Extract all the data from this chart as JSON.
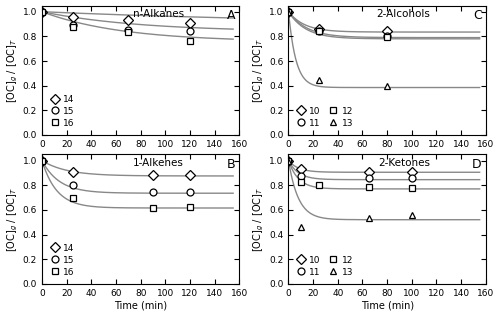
{
  "panel_A": {
    "title": "n-Alkanes",
    "label": "A",
    "series": [
      {
        "name": "14",
        "marker": "D",
        "data": [
          [
            0,
            1.0
          ],
          [
            25,
            0.96
          ],
          [
            70,
            0.935
          ],
          [
            120,
            0.905
          ]
        ],
        "A_inf": 0.89,
        "A0": 1.0,
        "tau": 250
      },
      {
        "name": "15",
        "marker": "o",
        "data": [
          [
            0,
            1.0
          ],
          [
            25,
            0.89
          ],
          [
            70,
            0.855
          ],
          [
            120,
            0.845
          ]
        ],
        "A_inf": 0.835,
        "A0": 1.0,
        "tau": 80
      },
      {
        "name": "16",
        "marker": "s",
        "data": [
          [
            0,
            1.0
          ],
          [
            25,
            0.875
          ],
          [
            70,
            0.835
          ],
          [
            120,
            0.765
          ]
        ],
        "A_inf": 0.755,
        "A0": 1.0,
        "tau": 65
      }
    ],
    "legend_ncol": 1
  },
  "panel_B": {
    "title": "1-Alkenes",
    "label": "B",
    "series": [
      {
        "name": "14",
        "marker": "D",
        "data": [
          [
            0,
            1.0
          ],
          [
            25,
            0.91
          ],
          [
            90,
            0.88
          ],
          [
            120,
            0.88
          ]
        ],
        "A_inf": 0.875,
        "A0": 1.0,
        "tau": 20
      },
      {
        "name": "15",
        "marker": "o",
        "data": [
          [
            0,
            1.0
          ],
          [
            25,
            0.8
          ],
          [
            90,
            0.745
          ],
          [
            120,
            0.745
          ]
        ],
        "A_inf": 0.735,
        "A0": 1.0,
        "tau": 14
      },
      {
        "name": "16",
        "marker": "s",
        "data": [
          [
            0,
            1.0
          ],
          [
            25,
            0.7
          ],
          [
            90,
            0.615
          ],
          [
            120,
            0.625
          ]
        ],
        "A_inf": 0.615,
        "A0": 1.0,
        "tau": 12
      }
    ],
    "legend_ncol": 1
  },
  "panel_C": {
    "title": "2-Alcohols",
    "label": "C",
    "series": [
      {
        "name": "10",
        "marker": "D",
        "data": [
          [
            0,
            1.0
          ],
          [
            25,
            0.86
          ],
          [
            80,
            0.84
          ]
        ],
        "A_inf": 0.835,
        "A0": 1.0,
        "tau": 13
      },
      {
        "name": "11",
        "marker": "o",
        "data": [
          [
            0,
            1.0
          ],
          [
            25,
            0.84
          ],
          [
            80,
            0.8
          ]
        ],
        "A_inf": 0.79,
        "A0": 1.0,
        "tau": 15
      },
      {
        "name": "12",
        "marker": "s",
        "data": [
          [
            0,
            1.0
          ],
          [
            25,
            0.845
          ],
          [
            80,
            0.795
          ]
        ],
        "A_inf": 0.78,
        "A0": 1.0,
        "tau": 14
      },
      {
        "name": "13",
        "marker": "^",
        "data": [
          [
            0,
            1.0
          ],
          [
            25,
            0.45
          ],
          [
            80,
            0.395
          ]
        ],
        "A_inf": 0.385,
        "A0": 1.0,
        "tau": 6
      }
    ],
    "legend_ncol": 2
  },
  "panel_D": {
    "title": "2-Ketones",
    "label": "D",
    "series": [
      {
        "name": "10",
        "marker": "D",
        "data": [
          [
            0,
            1.0
          ],
          [
            10,
            0.93
          ],
          [
            65,
            0.91
          ],
          [
            100,
            0.91
          ]
        ],
        "A_inf": 0.905,
        "A0": 1.0,
        "tau": 8
      },
      {
        "name": "11",
        "marker": "o",
        "data": [
          [
            0,
            1.0
          ],
          [
            10,
            0.875
          ],
          [
            65,
            0.855
          ],
          [
            100,
            0.855
          ]
        ],
        "A_inf": 0.845,
        "A0": 1.0,
        "tau": 8
      },
      {
        "name": "12",
        "marker": "s",
        "data": [
          [
            0,
            1.0
          ],
          [
            10,
            0.83
          ],
          [
            25,
            0.8
          ],
          [
            65,
            0.785
          ],
          [
            100,
            0.775
          ]
        ],
        "A_inf": 0.77,
        "A0": 1.0,
        "tau": 8
      },
      {
        "name": "13",
        "marker": "^",
        "data": [
          [
            0,
            1.0
          ],
          [
            10,
            0.46
          ],
          [
            65,
            0.53
          ],
          [
            100,
            0.56
          ]
        ],
        "A_inf": 0.52,
        "A0": 1.0,
        "tau": 8
      }
    ],
    "legend_ncol": 2
  },
  "ylabel": "[OC]$_g$ / [OC]$_T$",
  "xlabel": "Time (min)",
  "ylim": [
    0.0,
    1.05
  ],
  "xlim": [
    0,
    160
  ],
  "xticks": [
    0,
    20,
    40,
    60,
    80,
    100,
    120,
    140,
    160
  ],
  "yticks": [
    0.0,
    0.2,
    0.4,
    0.6,
    0.8,
    1.0
  ],
  "line_color": "#888888",
  "marker_size": 5,
  "line_width": 1.0,
  "figsize": [
    5.0,
    3.16
  ],
  "dpi": 100
}
